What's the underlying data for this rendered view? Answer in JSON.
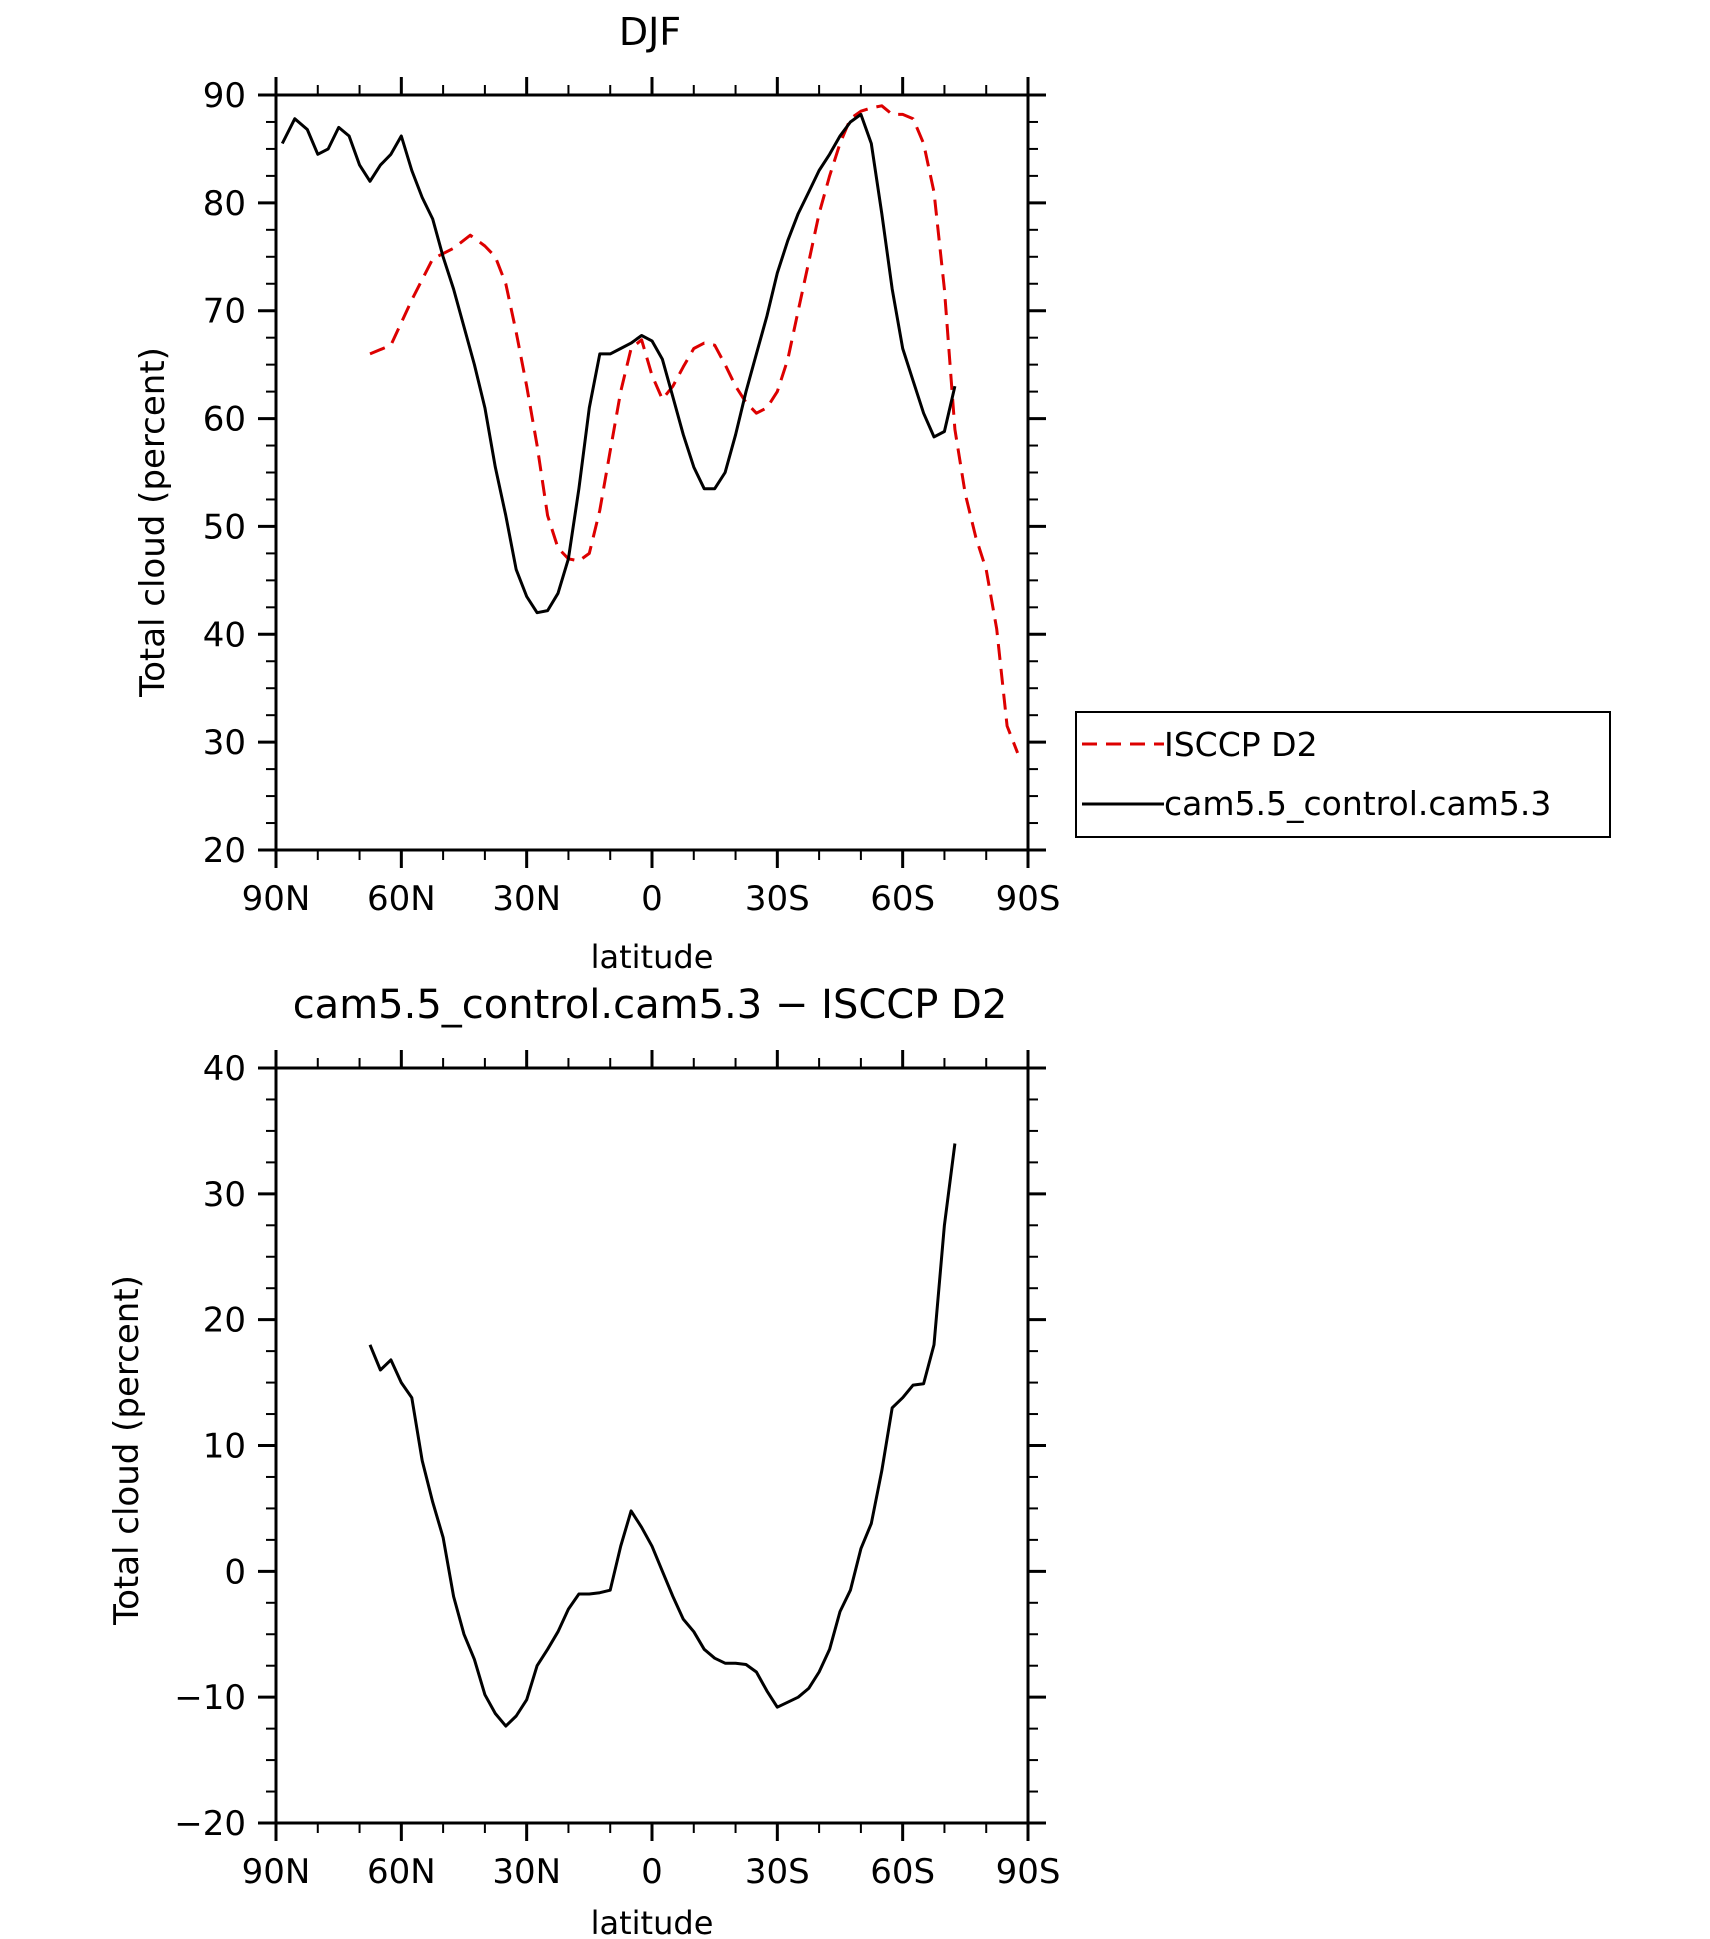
{
  "chart_data": [
    {
      "type": "line",
      "title": "DJF",
      "xlabel": "latitude",
      "ylabel": "Total cloud (percent)",
      "x_ticks": [
        90,
        60,
        30,
        0,
        -30,
        -60,
        -90
      ],
      "x_tick_labels": [
        "90N",
        "60N",
        "30N",
        "0",
        "30S",
        "60S",
        "90S"
      ],
      "xlim": [
        90,
        -90
      ],
      "ylim": [
        20,
        90
      ],
      "y_ticks": [
        20,
        30,
        40,
        50,
        60,
        70,
        80,
        90
      ],
      "legend_position": "right-outside",
      "series": [
        {
          "name": "ISCCP D2",
          "color": "#dd0000",
          "dash": "dashed",
          "points": [
            [
              67.5,
              66.0
            ],
            [
              62.5,
              66.8
            ],
            [
              57.5,
              71.0
            ],
            [
              52.5,
              74.8
            ],
            [
              47.5,
              75.8
            ],
            [
              43.5,
              77.0
            ],
            [
              40.0,
              76.0
            ],
            [
              37.5,
              75.0
            ],
            [
              35.0,
              72.5
            ],
            [
              32.5,
              68.0
            ],
            [
              30.0,
              63.0
            ],
            [
              27.5,
              57.5
            ],
            [
              25.0,
              51.0
            ],
            [
              22.5,
              48.0
            ],
            [
              20.0,
              47.0
            ],
            [
              17.5,
              46.8
            ],
            [
              15.0,
              47.5
            ],
            [
              12.5,
              51.5
            ],
            [
              10.0,
              57.0
            ],
            [
              7.5,
              62.5
            ],
            [
              5.0,
              66.5
            ],
            [
              2.5,
              67.3
            ],
            [
              0.0,
              64.0
            ],
            [
              -2.5,
              61.8
            ],
            [
              -5.0,
              63.0
            ],
            [
              -7.5,
              64.8
            ],
            [
              -10.0,
              66.5
            ],
            [
              -12.5,
              67.0
            ],
            [
              -15.0,
              66.8
            ],
            [
              -17.5,
              65.0
            ],
            [
              -20.0,
              63.0
            ],
            [
              -22.5,
              61.5
            ],
            [
              -25.0,
              60.5
            ],
            [
              -27.5,
              61.0
            ],
            [
              -30.0,
              62.5
            ],
            [
              -32.5,
              65.5
            ],
            [
              -35.0,
              70.0
            ],
            [
              -37.5,
              74.5
            ],
            [
              -40.0,
              79.0
            ],
            [
              -42.5,
              82.5
            ],
            [
              -45.0,
              85.5
            ],
            [
              -47.5,
              87.8
            ],
            [
              -50.0,
              88.5
            ],
            [
              -52.5,
              88.8
            ],
            [
              -55.0,
              89.0
            ],
            [
              -57.5,
              88.2
            ],
            [
              -60.0,
              88.2
            ],
            [
              -62.5,
              87.8
            ],
            [
              -65.0,
              85.5
            ],
            [
              -67.5,
              81.0
            ],
            [
              -70.0,
              72.0
            ],
            [
              -72.5,
              59.0
            ],
            [
              -75.0,
              53.0
            ],
            [
              -77.5,
              49.0
            ],
            [
              -80.0,
              46.0
            ],
            [
              -82.5,
              40.5
            ],
            [
              -85.0,
              31.5
            ],
            [
              -87.5,
              29.0
            ]
          ]
        },
        {
          "name": "cam5.5_control.cam5.3",
          "color": "#000000",
          "dash": "solid",
          "points": [
            [
              88.5,
              85.5
            ],
            [
              85.5,
              87.8
            ],
            [
              82.5,
              86.8
            ],
            [
              80.0,
              84.5
            ],
            [
              77.5,
              85.0
            ],
            [
              75.0,
              87.0
            ],
            [
              72.5,
              86.2
            ],
            [
              70.0,
              83.5
            ],
            [
              67.5,
              82.0
            ],
            [
              65.0,
              83.5
            ],
            [
              62.5,
              84.5
            ],
            [
              60.0,
              86.2
            ],
            [
              57.5,
              83.0
            ],
            [
              55.0,
              80.5
            ],
            [
              52.5,
              78.5
            ],
            [
              50.0,
              75.0
            ],
            [
              47.5,
              72.0
            ],
            [
              45.0,
              68.5
            ],
            [
              42.5,
              65.0
            ],
            [
              40.0,
              61.0
            ],
            [
              37.5,
              55.5
            ],
            [
              35.0,
              51.0
            ],
            [
              32.5,
              46.0
            ],
            [
              30.0,
              43.5
            ],
            [
              27.5,
              42.0
            ],
            [
              25.0,
              42.2
            ],
            [
              22.5,
              43.8
            ],
            [
              20.0,
              47.0
            ],
            [
              17.5,
              53.5
            ],
            [
              15.0,
              61.0
            ],
            [
              12.5,
              66.0
            ],
            [
              10.0,
              66.0
            ],
            [
              7.5,
              66.5
            ],
            [
              5.0,
              67.0
            ],
            [
              2.5,
              67.7
            ],
            [
              0.0,
              67.2
            ],
            [
              -2.5,
              65.5
            ],
            [
              -5.0,
              62.0
            ],
            [
              -7.5,
              58.5
            ],
            [
              -10.0,
              55.5
            ],
            [
              -12.5,
              53.5
            ],
            [
              -15.0,
              53.5
            ],
            [
              -17.5,
              55.0
            ],
            [
              -20.0,
              58.5
            ],
            [
              -22.5,
              62.5
            ],
            [
              -25.0,
              66.0
            ],
            [
              -27.5,
              69.5
            ],
            [
              -30.0,
              73.5
            ],
            [
              -32.5,
              76.5
            ],
            [
              -35.0,
              79.0
            ],
            [
              -37.5,
              81.0
            ],
            [
              -40.0,
              83.0
            ],
            [
              -42.5,
              84.5
            ],
            [
              -45.0,
              86.2
            ],
            [
              -47.5,
              87.5
            ],
            [
              -50.0,
              88.2
            ],
            [
              -52.5,
              85.5
            ],
            [
              -55.0,
              79.0
            ],
            [
              -57.5,
              72.0
            ],
            [
              -60.0,
              66.5
            ],
            [
              -62.5,
              63.5
            ],
            [
              -65.0,
              60.5
            ],
            [
              -67.5,
              58.3
            ],
            [
              -70.0,
              58.8
            ],
            [
              -72.5,
              63.0
            ]
          ]
        }
      ]
    },
    {
      "type": "line",
      "title": "cam5.5_control.cam5.3 − ISCCP D2",
      "xlabel": "latitude",
      "ylabel": "Total cloud (percent)",
      "x_ticks": [
        90,
        60,
        30,
        0,
        -30,
        -60,
        -90
      ],
      "x_tick_labels": [
        "90N",
        "60N",
        "30N",
        "0",
        "30S",
        "60S",
        "90S"
      ],
      "xlim": [
        90,
        -90
      ],
      "ylim": [
        -20,
        40
      ],
      "y_ticks": [
        -20,
        -10,
        0,
        10,
        20,
        30,
        40
      ],
      "y_tick_labels": [
        "−20",
        "−10",
        "0",
        "10",
        "20",
        "30",
        "40"
      ],
      "series": [
        {
          "color": "#000000",
          "dash": "solid",
          "points": [
            [
              67.5,
              18.0
            ],
            [
              65.0,
              16.0
            ],
            [
              62.5,
              16.8
            ],
            [
              60.0,
              15.0
            ],
            [
              57.5,
              13.8
            ],
            [
              55.0,
              8.8
            ],
            [
              52.5,
              5.5
            ],
            [
              50.0,
              2.7
            ],
            [
              47.5,
              -2.0
            ],
            [
              45.0,
              -5.0
            ],
            [
              42.5,
              -7.0
            ],
            [
              40.0,
              -9.8
            ],
            [
              37.5,
              -11.3
            ],
            [
              35.0,
              -12.3
            ],
            [
              32.5,
              -11.5
            ],
            [
              30.0,
              -10.2
            ],
            [
              27.5,
              -7.5
            ],
            [
              25.0,
              -6.2
            ],
            [
              22.5,
              -4.8
            ],
            [
              20.0,
              -3.0
            ],
            [
              17.5,
              -1.8
            ],
            [
              15.0,
              -1.8
            ],
            [
              12.5,
              -1.7
            ],
            [
              10.0,
              -1.5
            ],
            [
              7.5,
              2.0
            ],
            [
              5.0,
              4.8
            ],
            [
              2.5,
              3.5
            ],
            [
              0.0,
              2.0
            ],
            [
              -2.5,
              0.0
            ],
            [
              -5.0,
              -2.0
            ],
            [
              -7.5,
              -3.8
            ],
            [
              -10.0,
              -4.8
            ],
            [
              -12.5,
              -6.2
            ],
            [
              -15.0,
              -6.9
            ],
            [
              -17.5,
              -7.3
            ],
            [
              -20.0,
              -7.3
            ],
            [
              -22.5,
              -7.4
            ],
            [
              -25.0,
              -8.0
            ],
            [
              -27.5,
              -9.5
            ],
            [
              -30.0,
              -10.8
            ],
            [
              -32.5,
              -10.4
            ],
            [
              -35.0,
              -10.0
            ],
            [
              -37.5,
              -9.3
            ],
            [
              -40.0,
              -8.0
            ],
            [
              -42.5,
              -6.2
            ],
            [
              -45.0,
              -3.2
            ],
            [
              -47.5,
              -1.5
            ],
            [
              -50.0,
              1.8
            ],
            [
              -52.5,
              3.8
            ],
            [
              -55.0,
              8.0
            ],
            [
              -57.5,
              13.0
            ],
            [
              -60.0,
              13.8
            ],
            [
              -62.5,
              14.8
            ],
            [
              -65.0,
              14.9
            ],
            [
              -67.5,
              18.0
            ],
            [
              -70.0,
              27.5
            ],
            [
              -72.5,
              34.0
            ]
          ]
        }
      ]
    }
  ]
}
